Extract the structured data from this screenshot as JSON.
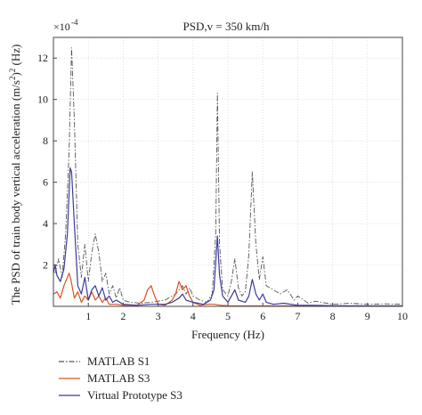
{
  "chart_data": {
    "type": "line",
    "title": "PSD,v = 350 km/h",
    "xlabel": "Frequency (Hz)",
    "ylabel_parts": [
      "The PSD of train body vertical acceleration (m/s",
      "2",
      ")",
      "2",
      " (Hz)"
    ],
    "y_multiplier": {
      "base": "×10",
      "exponent": "-4"
    },
    "xlim": [
      0,
      10
    ],
    "ylim": [
      0,
      13
    ],
    "x_ticks": [
      1,
      2,
      3,
      4,
      5,
      6,
      7,
      8,
      9,
      10
    ],
    "y_ticks": [
      2,
      4,
      6,
      8,
      10,
      12
    ],
    "grid": true,
    "legend_position": "below",
    "series": [
      {
        "name": "MATLAB S1",
        "color": "#555555",
        "style": "dashdot",
        "points": [
          [
            0.05,
            1.6
          ],
          [
            0.15,
            2.3
          ],
          [
            0.25,
            1.4
          ],
          [
            0.35,
            3.5
          ],
          [
            0.45,
            7.5
          ],
          [
            0.52,
            12.5
          ],
          [
            0.6,
            9
          ],
          [
            0.7,
            3
          ],
          [
            0.8,
            1.4
          ],
          [
            0.9,
            3.0
          ],
          [
            1.0,
            1.2
          ],
          [
            1.1,
            2.6
          ],
          [
            1.2,
            3.5
          ],
          [
            1.3,
            2.6
          ],
          [
            1.4,
            1.2
          ],
          [
            1.5,
            1.6
          ],
          [
            1.6,
            0.6
          ],
          [
            1.7,
            1.0
          ],
          [
            1.8,
            0.4
          ],
          [
            1.9,
            0.9
          ],
          [
            2.0,
            0.3
          ],
          [
            2.2,
            0.2
          ],
          [
            2.5,
            0.15
          ],
          [
            2.8,
            0.2
          ],
          [
            3.2,
            0.3
          ],
          [
            3.5,
            0.6
          ],
          [
            3.7,
            1.0
          ],
          [
            3.8,
            0.6
          ],
          [
            3.9,
            0.9
          ],
          [
            4.0,
            0.5
          ],
          [
            4.2,
            0.3
          ],
          [
            4.4,
            0.2
          ],
          [
            4.55,
            0.6
          ],
          [
            4.65,
            3.5
          ],
          [
            4.7,
            10.3
          ],
          [
            4.76,
            3.0
          ],
          [
            4.85,
            0.8
          ],
          [
            5.0,
            0.5
          ],
          [
            5.1,
            1.2
          ],
          [
            5.2,
            2.3
          ],
          [
            5.3,
            0.9
          ],
          [
            5.4,
            0.5
          ],
          [
            5.5,
            0.7
          ],
          [
            5.6,
            2.5
          ],
          [
            5.7,
            6.5
          ],
          [
            5.8,
            3.0
          ],
          [
            5.9,
            1.3
          ],
          [
            6.0,
            2.4
          ],
          [
            6.1,
            1.0
          ],
          [
            6.3,
            0.8
          ],
          [
            6.5,
            0.6
          ],
          [
            6.7,
            0.8
          ],
          [
            6.9,
            0.3
          ],
          [
            7.0,
            0.5
          ],
          [
            7.3,
            0.15
          ],
          [
            7.5,
            0.25
          ],
          [
            8.0,
            0.1
          ],
          [
            8.5,
            0.15
          ],
          [
            9.0,
            0.1
          ],
          [
            9.5,
            0.12
          ],
          [
            10.0,
            0.1
          ]
        ]
      },
      {
        "name": "MATLAB S3",
        "color": "#d9531e",
        "style": "solid",
        "points": [
          [
            0.0,
            0.6
          ],
          [
            0.1,
            0.7
          ],
          [
            0.2,
            0.4
          ],
          [
            0.3,
            1.0
          ],
          [
            0.4,
            1.4
          ],
          [
            0.45,
            1.6
          ],
          [
            0.5,
            1.3
          ],
          [
            0.6,
            0.4
          ],
          [
            0.7,
            0.7
          ],
          [
            0.8,
            0.2
          ],
          [
            0.9,
            0.5
          ],
          [
            1.0,
            0.3
          ],
          [
            1.1,
            0.7
          ],
          [
            1.2,
            0.3
          ],
          [
            1.3,
            0.5
          ],
          [
            1.4,
            0.2
          ],
          [
            1.5,
            0.4
          ],
          [
            1.6,
            0.1
          ],
          [
            1.8,
            0.1
          ],
          [
            2.0,
            0.05
          ],
          [
            2.2,
            0.05
          ],
          [
            2.4,
            0.05
          ],
          [
            2.6,
            0.3
          ],
          [
            2.7,
            0.8
          ],
          [
            2.8,
            1.0
          ],
          [
            2.9,
            0.5
          ],
          [
            3.0,
            0.1
          ],
          [
            3.2,
            0.05
          ],
          [
            3.4,
            0.3
          ],
          [
            3.5,
            0.6
          ],
          [
            3.6,
            1.2
          ],
          [
            3.7,
            0.8
          ],
          [
            3.8,
            1.0
          ],
          [
            3.9,
            0.5
          ],
          [
            4.0,
            0.2
          ],
          [
            4.2,
            0.05
          ],
          [
            4.4,
            0.1
          ],
          [
            4.6,
            0.1
          ],
          [
            4.8,
            0.05
          ],
          [
            5.0,
            0.03
          ],
          [
            5.5,
            0.02
          ],
          [
            6.0,
            0.02
          ],
          [
            7.0,
            0.02
          ],
          [
            8.0,
            0.01
          ],
          [
            10.0,
            0.01
          ]
        ]
      },
      {
        "name": "Virtual Prototype S3",
        "color": "#3b3b9e",
        "style": "solid",
        "points": [
          [
            0.0,
            1.6
          ],
          [
            0.05,
            2.0
          ],
          [
            0.1,
            1.5
          ],
          [
            0.2,
            1.2
          ],
          [
            0.3,
            1.8
          ],
          [
            0.4,
            3.5
          ],
          [
            0.48,
            6.7
          ],
          [
            0.52,
            6.5
          ],
          [
            0.6,
            4.0
          ],
          [
            0.7,
            1.0
          ],
          [
            0.8,
            0.6
          ],
          [
            0.9,
            1.4
          ],
          [
            1.0,
            0.3
          ],
          [
            1.1,
            0.8
          ],
          [
            1.2,
            1.0
          ],
          [
            1.3,
            0.5
          ],
          [
            1.4,
            0.9
          ],
          [
            1.5,
            0.3
          ],
          [
            1.6,
            0.5
          ],
          [
            1.7,
            0.2
          ],
          [
            1.8,
            0.3
          ],
          [
            2.0,
            0.1
          ],
          [
            2.4,
            0.05
          ],
          [
            2.8,
            0.1
          ],
          [
            3.2,
            0.1
          ],
          [
            3.4,
            0.2
          ],
          [
            3.6,
            0.4
          ],
          [
            3.7,
            0.6
          ],
          [
            3.8,
            0.3
          ],
          [
            4.0,
            0.2
          ],
          [
            4.3,
            0.1
          ],
          [
            4.5,
            0.3
          ],
          [
            4.6,
            0.8
          ],
          [
            4.7,
            3.4
          ],
          [
            4.76,
            1.5
          ],
          [
            4.85,
            0.5
          ],
          [
            5.0,
            0.2
          ],
          [
            5.1,
            0.5
          ],
          [
            5.2,
            0.8
          ],
          [
            5.3,
            0.3
          ],
          [
            5.5,
            0.2
          ],
          [
            5.6,
            0.5
          ],
          [
            5.7,
            1.3
          ],
          [
            5.8,
            0.6
          ],
          [
            5.9,
            0.3
          ],
          [
            6.0,
            0.6
          ],
          [
            6.1,
            0.2
          ],
          [
            6.3,
            0.1
          ],
          [
            6.6,
            0.15
          ],
          [
            7.0,
            0.05
          ],
          [
            7.5,
            0.05
          ],
          [
            8.0,
            0.03
          ],
          [
            9.0,
            0.02
          ],
          [
            10.0,
            0.02
          ]
        ]
      }
    ]
  }
}
